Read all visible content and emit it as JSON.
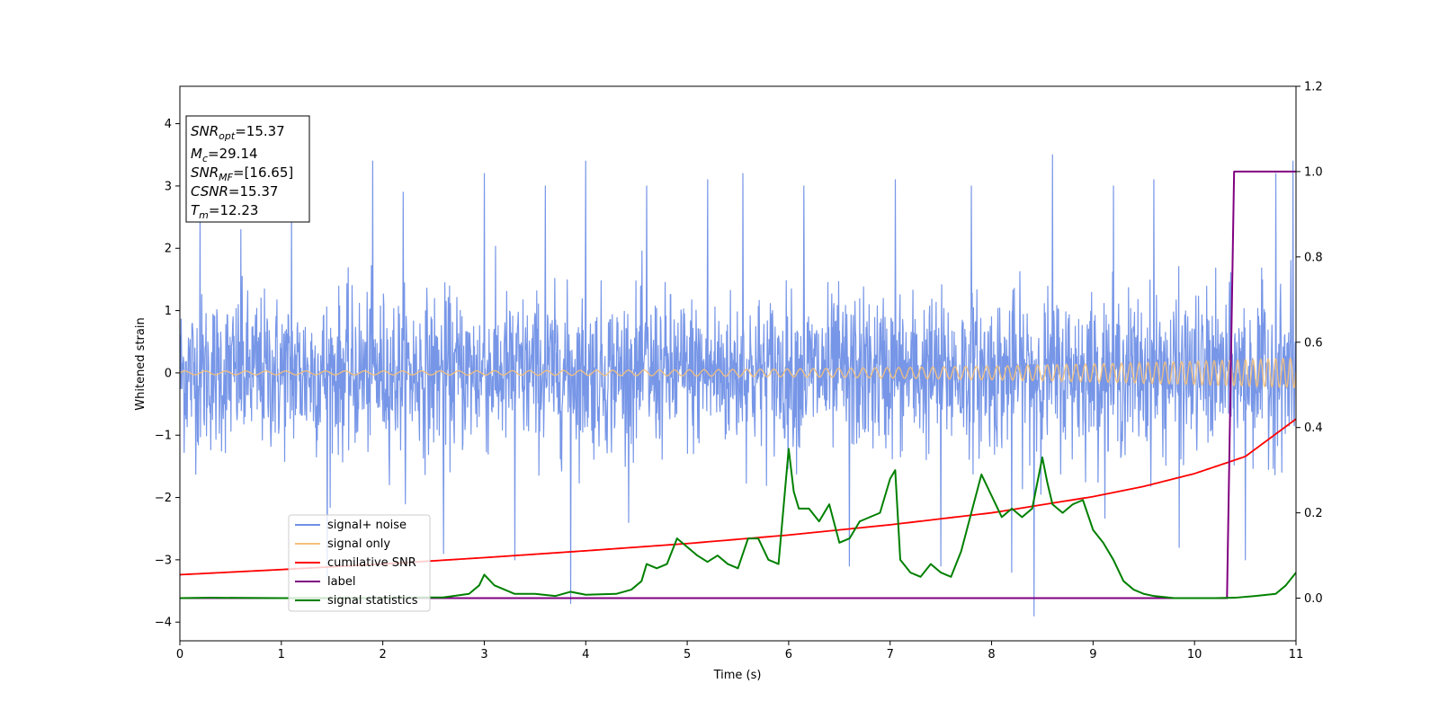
{
  "chart_data": {
    "type": "line",
    "xlabel": "Time (s)",
    "ylabel": "Whitened strain",
    "xlim": [
      0,
      11
    ],
    "ylim": [
      -4.3,
      4.6
    ],
    "y2lim": [
      -0.1,
      1.2
    ],
    "x_ticks": [
      "0",
      "1",
      "2",
      "3",
      "4",
      "5",
      "6",
      "7",
      "8",
      "9",
      "10",
      "11"
    ],
    "y_ticks": [
      "−4",
      "−3",
      "−2",
      "−1",
      "0",
      "1",
      "2",
      "3",
      "4"
    ],
    "y2_ticks": [
      "0.0",
      "0.2",
      "0.4",
      "0.6",
      "0.8",
      "1.0",
      "1.2"
    ],
    "legend_position": "lower-left",
    "colors": {
      "signal_noise": "#7090e6",
      "signal_only": "#f5c07a",
      "cumulative_snr": "#ff0000",
      "label": "#800080",
      "signal_statistics": "#008000"
    },
    "info_box": {
      "line1_name": "SNR",
      "line1_sub": "opt",
      "line1_value": "=15.37",
      "line2_name": "M",
      "line2_sub": "c",
      "line2_value": "=29.14",
      "line3_name": "SNR",
      "line3_sub": "MF",
      "line3_value": "=[16.65]",
      "line4_name": "CSNR",
      "line4_value": "=15.37",
      "line5_name": "T",
      "line5_sub": "m",
      "line5_value": "=12.23"
    },
    "series": [
      {
        "name": "signal+ noise",
        "axis": "left",
        "description_envelope": "noise band roughly -1.8 to 1.8 with spikes to about +3.5 and -3.9",
        "band": [
          -1.8,
          1.8
        ],
        "spikes": [
          [
            0.2,
            2.6
          ],
          [
            0.6,
            2.3
          ],
          [
            1.1,
            2.6
          ],
          [
            1.45,
            -3.3
          ],
          [
            1.9,
            3.4
          ],
          [
            2.2,
            2.9
          ],
          [
            2.6,
            -2.9
          ],
          [
            3.0,
            3.2
          ],
          [
            3.3,
            -3.0
          ],
          [
            3.6,
            3.0
          ],
          [
            3.85,
            -3.7
          ],
          [
            4.0,
            3.4
          ],
          [
            4.6,
            3.0
          ],
          [
            5.2,
            3.1
          ],
          [
            5.55,
            3.2
          ],
          [
            6.15,
            3.0
          ],
          [
            6.6,
            -3.1
          ],
          [
            7.05,
            3.1
          ],
          [
            7.5,
            -3.1
          ],
          [
            7.8,
            3.0
          ],
          [
            8.2,
            -3.2
          ],
          [
            8.42,
            -3.9
          ],
          [
            8.6,
            3.5
          ],
          [
            9.2,
            3.0
          ],
          [
            9.6,
            3.1
          ],
          [
            9.85,
            -2.8
          ],
          [
            10.5,
            -3.0
          ],
          [
            10.8,
            3.2
          ],
          [
            10.97,
            3.4
          ]
        ]
      },
      {
        "name": "signal only",
        "axis": "left",
        "amplitude_start": 0.03,
        "amplitude_end": 0.24,
        "frequency_start_hz": 5,
        "frequency_end_hz": 14
      },
      {
        "name": "cumilative SNR",
        "axis": "right",
        "x": [
          0,
          1,
          2,
          3,
          4,
          5,
          6,
          7,
          8,
          9,
          9.5,
          10,
          10.5,
          11
        ],
        "y": [
          0.055,
          0.067,
          0.08,
          0.095,
          0.111,
          0.128,
          0.148,
          0.172,
          0.2,
          0.238,
          0.262,
          0.292,
          0.332,
          0.42
        ]
      },
      {
        "name": "label",
        "axis": "right",
        "x": [
          0,
          10.32,
          10.39,
          11
        ],
        "y": [
          0.0,
          0.0,
          1.0,
          1.0
        ]
      },
      {
        "name": "signal statistics",
        "axis": "right",
        "x": [
          0,
          0.3,
          1.0,
          1.8,
          2.2,
          2.6,
          2.85,
          2.95,
          3.0,
          3.1,
          3.2,
          3.3,
          3.5,
          3.7,
          3.85,
          4.0,
          4.3,
          4.45,
          4.55,
          4.6,
          4.7,
          4.8,
          4.9,
          5.0,
          5.1,
          5.2,
          5.3,
          5.4,
          5.5,
          5.6,
          5.7,
          5.8,
          5.9,
          6.0,
          6.05,
          6.1,
          6.2,
          6.3,
          6.4,
          6.5,
          6.6,
          6.7,
          6.8,
          6.9,
          7.0,
          7.05,
          7.1,
          7.2,
          7.3,
          7.4,
          7.5,
          7.6,
          7.7,
          7.8,
          7.9,
          8.0,
          8.1,
          8.2,
          8.3,
          8.4,
          8.5,
          8.55,
          8.6,
          8.7,
          8.8,
          8.9,
          9.0,
          9.1,
          9.2,
          9.3,
          9.4,
          9.5,
          9.6,
          9.8,
          10.0,
          10.2,
          10.4,
          10.6,
          10.8,
          10.9,
          11.0
        ],
        "y": [
          0.0,
          0.001,
          0.0,
          0.0,
          0.001,
          0.002,
          0.01,
          0.03,
          0.055,
          0.03,
          0.02,
          0.01,
          0.01,
          0.005,
          0.015,
          0.008,
          0.01,
          0.02,
          0.04,
          0.08,
          0.07,
          0.08,
          0.14,
          0.12,
          0.1,
          0.085,
          0.1,
          0.08,
          0.07,
          0.14,
          0.14,
          0.09,
          0.08,
          0.35,
          0.25,
          0.21,
          0.21,
          0.18,
          0.22,
          0.13,
          0.14,
          0.18,
          0.19,
          0.2,
          0.28,
          0.3,
          0.09,
          0.06,
          0.05,
          0.08,
          0.06,
          0.05,
          0.11,
          0.2,
          0.29,
          0.24,
          0.19,
          0.21,
          0.19,
          0.21,
          0.33,
          0.27,
          0.22,
          0.2,
          0.22,
          0.23,
          0.16,
          0.13,
          0.09,
          0.04,
          0.02,
          0.01,
          0.005,
          0.0,
          0.0,
          0.0,
          0.001,
          0.005,
          0.01,
          0.03,
          0.06
        ]
      }
    ]
  }
}
